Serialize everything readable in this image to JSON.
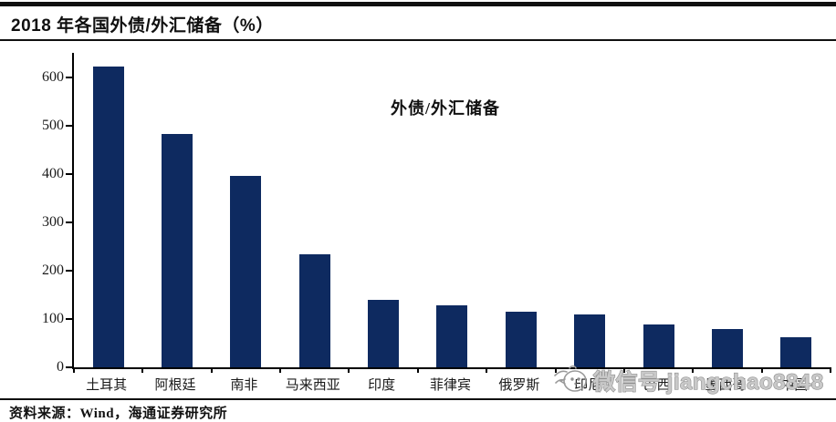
{
  "header": {
    "title": "2018 年各国外债/外汇储备（%）"
  },
  "legend": {
    "label": "外债/外汇储备"
  },
  "watermark": {
    "icon": "doodle-mascot-icon",
    "text": "微信号 jiangchao8848"
  },
  "footer": {
    "source": "资料来源：Wind，海通证券研究所"
  },
  "colors": {
    "bar": "#0E2A60",
    "rule": "#101010",
    "watermark_gray": "#8f8f8f"
  },
  "chart_data": {
    "type": "bar",
    "title": "2018 年各国外债/外汇储备（%）",
    "series_label": "外债/外汇储备",
    "categories": [
      "土耳其",
      "阿根廷",
      "南非",
      "马来西亚",
      "印度",
      "菲律宾",
      "俄罗斯",
      "印尼",
      "巴西",
      "墨西哥",
      "中国"
    ],
    "values": [
      622,
      483,
      396,
      234,
      140,
      129,
      115,
      110,
      88,
      80,
      63
    ],
    "xlabel": "",
    "ylabel": "",
    "yticks": [
      0,
      100,
      200,
      300,
      400,
      500,
      600
    ],
    "ylim": [
      0,
      650
    ],
    "grid": false,
    "legend_position": "inside-top-center-as-text",
    "bar_color": "#0E2A60",
    "note_layout": "x-axis labels of last four bars are covered by gray watermark"
  }
}
